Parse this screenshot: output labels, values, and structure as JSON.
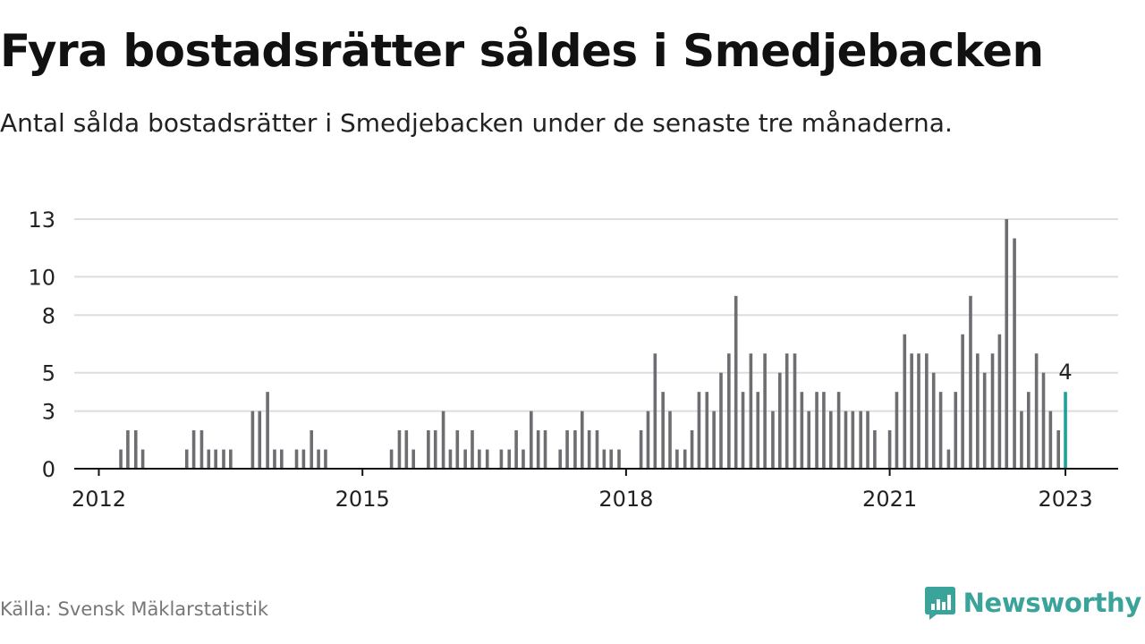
{
  "title": "Fyra bostadsrätter såldes i Smedjebacken",
  "subtitle": "Antal sålda bostadsrätter i Smedjebacken under de senaste tre månaderna.",
  "source": "Källa: Svensk Mäklarstatistik",
  "brand": {
    "name": "Newsworthy",
    "icon": "newsworthy-logo-icon"
  },
  "colors": {
    "bar": "#6d6d72",
    "highlight": "#1aa39a",
    "grid": "#dddddd",
    "axis": "#111111",
    "brand": "#3aa39a",
    "text": "#222222"
  },
  "chart_data": {
    "type": "bar",
    "xlabel": "",
    "ylabel": "",
    "ylim": [
      0,
      13
    ],
    "yticks": [
      0,
      3,
      5,
      8,
      10,
      13
    ],
    "xticks": [
      2012,
      2015,
      2018,
      2021,
      2023
    ],
    "xrange": [
      2011.72,
      2023.6
    ],
    "grid": true,
    "highlight_label": "4",
    "series": [
      {
        "values": [
          [
            2012.25,
            1
          ],
          [
            2012.33,
            2
          ],
          [
            2012.42,
            2
          ],
          [
            2012.5,
            1
          ],
          [
            2013.0,
            1
          ],
          [
            2013.08,
            2
          ],
          [
            2013.17,
            2
          ],
          [
            2013.25,
            1
          ],
          [
            2013.33,
            1
          ],
          [
            2013.42,
            1
          ],
          [
            2013.5,
            1
          ],
          [
            2013.75,
            3
          ],
          [
            2013.83,
            3
          ],
          [
            2013.92,
            4
          ],
          [
            2014.0,
            1
          ],
          [
            2014.08,
            1
          ],
          [
            2014.25,
            1
          ],
          [
            2014.33,
            1
          ],
          [
            2014.42,
            2
          ],
          [
            2014.5,
            1
          ],
          [
            2014.58,
            1
          ],
          [
            2015.33,
            1
          ],
          [
            2015.42,
            2
          ],
          [
            2015.5,
            2
          ],
          [
            2015.58,
            1
          ],
          [
            2015.75,
            2
          ],
          [
            2015.83,
            2
          ],
          [
            2015.92,
            3
          ],
          [
            2016.0,
            1
          ],
          [
            2016.08,
            2
          ],
          [
            2016.17,
            1
          ],
          [
            2016.25,
            2
          ],
          [
            2016.33,
            1
          ],
          [
            2016.42,
            1
          ],
          [
            2016.58,
            1
          ],
          [
            2016.67,
            1
          ],
          [
            2016.75,
            2
          ],
          [
            2016.83,
            1
          ],
          [
            2016.92,
            3
          ],
          [
            2017.0,
            2
          ],
          [
            2017.08,
            2
          ],
          [
            2017.25,
            1
          ],
          [
            2017.33,
            2
          ],
          [
            2017.42,
            2
          ],
          [
            2017.5,
            3
          ],
          [
            2017.58,
            2
          ],
          [
            2017.67,
            2
          ],
          [
            2017.75,
            1
          ],
          [
            2017.83,
            1
          ],
          [
            2017.92,
            1
          ],
          [
            2018.17,
            2
          ],
          [
            2018.25,
            3
          ],
          [
            2018.33,
            6
          ],
          [
            2018.42,
            4
          ],
          [
            2018.5,
            3
          ],
          [
            2018.58,
            1
          ],
          [
            2018.67,
            1
          ],
          [
            2018.75,
            2
          ],
          [
            2018.83,
            4
          ],
          [
            2018.92,
            4
          ],
          [
            2019.0,
            3
          ],
          [
            2019.08,
            5
          ],
          [
            2019.17,
            6
          ],
          [
            2019.25,
            9
          ],
          [
            2019.33,
            4
          ],
          [
            2019.42,
            6
          ],
          [
            2019.5,
            4
          ],
          [
            2019.58,
            6
          ],
          [
            2019.67,
            3
          ],
          [
            2019.75,
            5
          ],
          [
            2019.83,
            6
          ],
          [
            2019.92,
            6
          ],
          [
            2020.0,
            4
          ],
          [
            2020.08,
            3
          ],
          [
            2020.17,
            4
          ],
          [
            2020.25,
            4
          ],
          [
            2020.33,
            3
          ],
          [
            2020.42,
            4
          ],
          [
            2020.5,
            3
          ],
          [
            2020.58,
            3
          ],
          [
            2020.67,
            3
          ],
          [
            2020.75,
            3
          ],
          [
            2020.83,
            2
          ],
          [
            2021.0,
            2
          ],
          [
            2021.08,
            4
          ],
          [
            2021.17,
            7
          ],
          [
            2021.25,
            6
          ],
          [
            2021.33,
            6
          ],
          [
            2021.42,
            6
          ],
          [
            2021.5,
            5
          ],
          [
            2021.58,
            4
          ],
          [
            2021.67,
            1
          ],
          [
            2021.75,
            4
          ],
          [
            2021.83,
            7
          ],
          [
            2021.92,
            9
          ],
          [
            2022.0,
            6
          ],
          [
            2022.08,
            5
          ],
          [
            2022.17,
            6
          ],
          [
            2022.25,
            7
          ],
          [
            2022.33,
            13
          ],
          [
            2022.42,
            12
          ],
          [
            2022.5,
            3
          ],
          [
            2022.58,
            4
          ],
          [
            2022.67,
            6
          ],
          [
            2022.75,
            5
          ],
          [
            2022.83,
            3
          ],
          [
            2022.92,
            2
          ],
          [
            2023.0,
            4
          ]
        ]
      }
    ]
  }
}
